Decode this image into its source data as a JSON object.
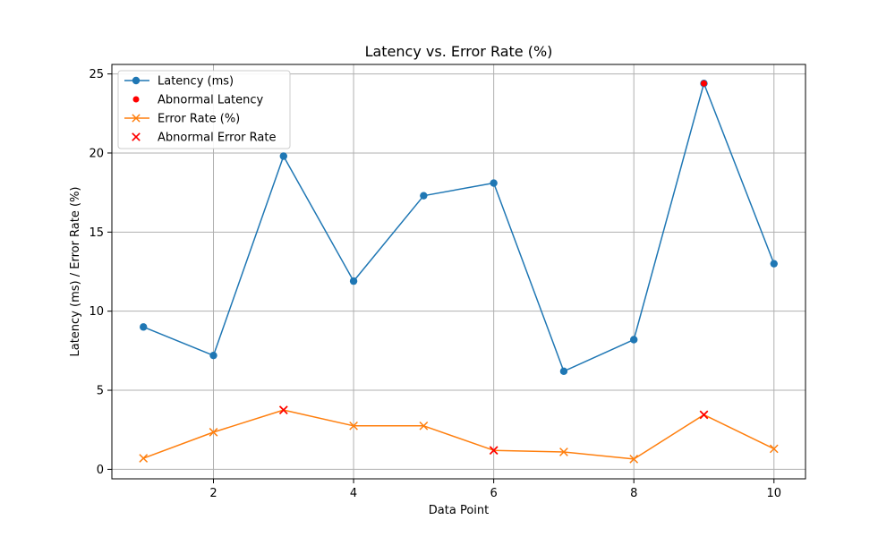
{
  "chart_data": {
    "type": "line",
    "title": "Latency vs. Error Rate (%)",
    "xlabel": "Data Point",
    "ylabel": "Latency (ms) / Error Rate (%)",
    "xlim": [
      0.55,
      10.45
    ],
    "ylim": [
      -0.6,
      25.6
    ],
    "xticks": [
      2,
      4,
      6,
      8,
      10
    ],
    "yticks": [
      0,
      5,
      10,
      15,
      20,
      25
    ],
    "grid": true,
    "legend_position": "top-left",
    "x": [
      1,
      2,
      3,
      4,
      5,
      6,
      7,
      8,
      9,
      10
    ],
    "series": [
      {
        "name": "Latency (ms)",
        "values": [
          9.0,
          7.2,
          19.8,
          11.9,
          17.3,
          18.1,
          6.2,
          8.2,
          24.4,
          13.0
        ],
        "color": "#1f77b4",
        "marker": "circle"
      },
      {
        "name": "Error Rate (%)",
        "values": [
          0.7,
          2.35,
          3.75,
          2.75,
          2.75,
          1.2,
          1.1,
          0.65,
          3.45,
          1.3
        ],
        "color": "#ff7f0e",
        "marker": "x"
      }
    ],
    "abnormal": [
      {
        "name": "Abnormal Latency",
        "x": [
          9
        ],
        "values": [
          24.4
        ],
        "color": "#ff0000",
        "marker": "circle"
      },
      {
        "name": "Abnormal Error Rate",
        "x": [
          3,
          6,
          9
        ],
        "values": [
          3.75,
          1.2,
          3.45
        ],
        "color": "#ff0000",
        "marker": "x"
      }
    ],
    "legend": [
      {
        "label": "Latency (ms)",
        "color": "#1f77b4",
        "marker": "circle",
        "line": true
      },
      {
        "label": "Abnormal Latency",
        "color": "#ff0000",
        "marker": "circle",
        "line": false
      },
      {
        "label": "Error Rate (%)",
        "color": "#ff7f0e",
        "marker": "x",
        "line": true
      },
      {
        "label": "Abnormal Error Rate",
        "color": "#ff0000",
        "marker": "x",
        "line": false
      }
    ]
  }
}
